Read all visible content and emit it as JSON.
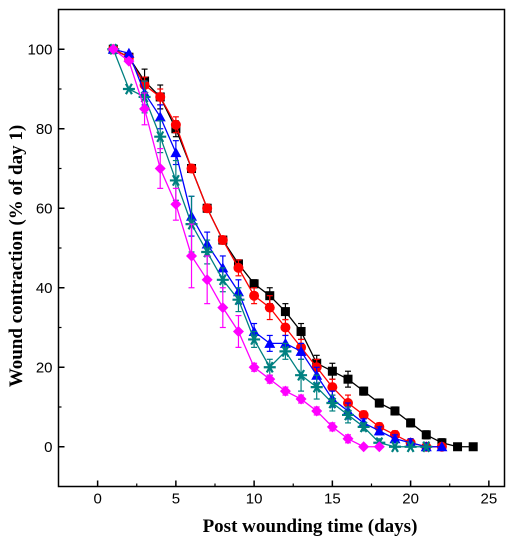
{
  "chart_data": {
    "type": "line",
    "title": "",
    "xlabel": "Post wounding time (days)",
    "ylabel": "Wound contraction (% of day 1)",
    "xlim": [
      -2.5,
      26
    ],
    "ylim": [
      -10,
      110
    ],
    "xticks": [
      0,
      5,
      10,
      15,
      20,
      25
    ],
    "yticks": [
      0,
      20,
      40,
      60,
      80,
      100
    ],
    "grid": false,
    "legend": "none",
    "series": [
      {
        "color": "#000000",
        "marker": "square",
        "x": [
          1,
          2,
          3,
          4,
          5,
          6,
          7,
          8,
          9,
          10,
          11,
          12,
          13,
          14,
          15,
          16,
          17,
          18,
          19,
          20,
          21,
          22,
          23,
          24
        ],
        "y": [
          100,
          98,
          92,
          88,
          80,
          70,
          60,
          52,
          46,
          41,
          38,
          34,
          29,
          21,
          19,
          17,
          14,
          11,
          9,
          6,
          3,
          1,
          0,
          0
        ],
        "err": [
          0,
          0,
          3,
          3,
          2,
          1,
          1,
          1,
          1,
          1,
          2,
          2,
          2,
          2,
          2,
          2,
          1,
          1,
          1,
          1,
          1,
          1,
          0,
          0
        ]
      },
      {
        "color": "#ff0000",
        "marker": "circle",
        "x": [
          1,
          2,
          3,
          4,
          5,
          6,
          7,
          8,
          9,
          10,
          11,
          12,
          13,
          14,
          15,
          16,
          17,
          18,
          19,
          20,
          21,
          22
        ],
        "y": [
          100,
          98,
          91,
          88,
          81,
          70,
          60,
          52,
          45,
          38,
          35,
          30,
          25,
          20,
          15,
          11,
          8,
          5,
          3,
          1,
          0,
          0
        ],
        "err": [
          0,
          0,
          2,
          2,
          2,
          1,
          1,
          1,
          2,
          2,
          3,
          2,
          2,
          2,
          2,
          2,
          1,
          1,
          1,
          1,
          0,
          0
        ]
      },
      {
        "color": "#0000ff",
        "marker": "triangle",
        "x": [
          1,
          2,
          3,
          4,
          5,
          6,
          7,
          8,
          9,
          10,
          11,
          12,
          13,
          14,
          15,
          16,
          17,
          18,
          19,
          20,
          21,
          22
        ],
        "y": [
          100,
          99,
          89,
          83,
          74,
          58,
          51,
          45,
          39,
          29,
          26,
          26,
          24,
          18,
          12,
          9,
          6,
          4,
          2,
          1,
          0,
          0
        ],
        "err": [
          0,
          0,
          3,
          3,
          3,
          5,
          3,
          3,
          3,
          2,
          2,
          2,
          2,
          2,
          2,
          2,
          1,
          1,
          1,
          1,
          0,
          0
        ]
      },
      {
        "color": "#008080",
        "marker": "star",
        "x": [
          1,
          2,
          3,
          4,
          5,
          6,
          7,
          8,
          9,
          10,
          11,
          12,
          13,
          14,
          15,
          16,
          17,
          18,
          19,
          20,
          21
        ],
        "y": [
          100,
          90,
          88,
          78,
          67,
          56,
          49,
          42,
          37,
          27,
          20,
          24,
          18,
          15,
          11,
          8,
          5,
          1,
          0,
          0,
          0
        ],
        "err": [
          0,
          0,
          4,
          4,
          5,
          7,
          3,
          3,
          3,
          2,
          2,
          2,
          4,
          3,
          2,
          2,
          1,
          1,
          0,
          0,
          0
        ]
      },
      {
        "color": "#ff00ff",
        "marker": "diamond",
        "x": [
          1,
          2,
          3,
          4,
          5,
          6,
          7,
          8,
          9,
          10,
          11,
          12,
          13,
          14,
          15,
          16,
          17,
          18
        ],
        "y": [
          100,
          97,
          85,
          70,
          61,
          48,
          42,
          35,
          29,
          20,
          17,
          14,
          12,
          9,
          5,
          2,
          0,
          0
        ],
        "err": [
          0,
          0,
          4,
          5,
          4,
          8,
          6,
          5,
          4,
          1,
          1,
          1,
          1,
          1,
          1,
          1,
          0,
          0
        ]
      }
    ]
  }
}
